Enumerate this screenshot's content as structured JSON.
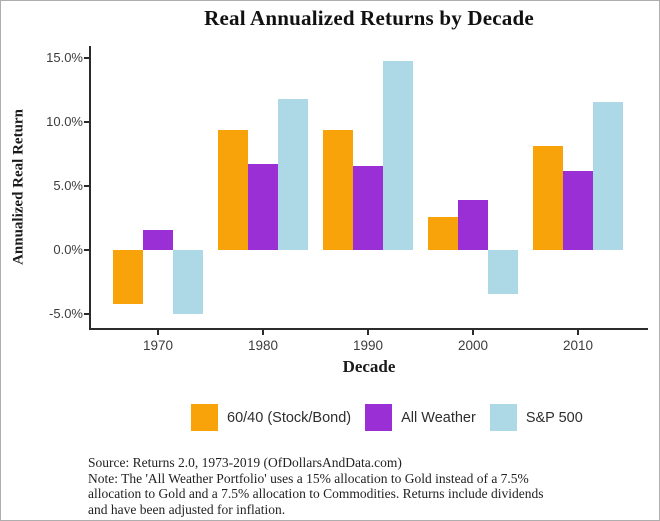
{
  "title": "Real Annualized Returns by Decade",
  "chart_data": {
    "type": "bar",
    "title": "Real Annualized Returns by Decade",
    "xlabel": "Decade",
    "ylabel": "Annualized Real Return",
    "categories": [
      "1970",
      "1980",
      "1990",
      "2000",
      "2010"
    ],
    "series": [
      {
        "name": "60/40 (Stock/Bond)",
        "color": "#F9A30B",
        "values": [
          -4.2,
          9.4,
          9.4,
          2.6,
          8.1
        ]
      },
      {
        "name": "All Weather",
        "color": "#9B2FD6",
        "values": [
          1.6,
          6.7,
          6.6,
          3.9,
          6.2
        ]
      },
      {
        "name": "S&P 500",
        "color": "#ADD8E6",
        "values": [
          -5.0,
          11.8,
          14.8,
          -3.4,
          11.6
        ]
      }
    ],
    "y_ticks": [
      {
        "value": 15,
        "label": "15.0%"
      },
      {
        "value": 10,
        "label": "10.0%"
      },
      {
        "value": 5,
        "label": "5.0%"
      },
      {
        "value": 0,
        "label": "0.0%"
      },
      {
        "value": -5,
        "label": "-5.0%"
      }
    ],
    "ylim": [
      -6.2,
      15.9
    ],
    "grid": false,
    "legend_position": "bottom"
  },
  "footnote": {
    "lines": [
      "Source:  Returns 2.0, 1973-2019 (OfDollarsAndData.com)",
      "Note: The 'All Weather Portfolio' uses a 15% allocation to Gold instead of a 7.5%",
      "allocation to Gold and a 7.5% allocation to Commodities. Returns include dividends",
      "and have been adjusted for inflation."
    ]
  }
}
